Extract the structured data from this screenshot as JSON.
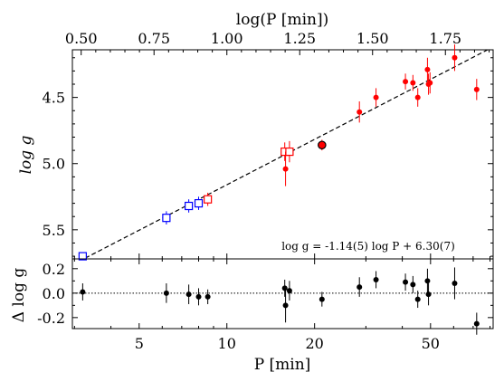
{
  "chart_data": [
    {
      "type": "scatter",
      "panel": "main",
      "top_axis_label": "log(P [min])",
      "top_ticks": [
        "0.50",
        "0.75",
        "1.00",
        "1.25",
        "1.50",
        "1.75"
      ],
      "top_tick_values": [
        0.5,
        0.75,
        1.0,
        1.25,
        1.5,
        1.75
      ],
      "ylabel": "log g",
      "y_ticks": [
        "4.5",
        "5.0",
        "5.5"
      ],
      "y_tick_values": [
        4.5,
        5.0,
        5.5
      ],
      "ylim": [
        5.72,
        4.14
      ],
      "y_inverted": true,
      "fit_label": "log g = -1.14(5) log P + 6.30(7)",
      "fit": {
        "slope": -1.14,
        "intercept": 6.3,
        "style": "dashed"
      },
      "series": [
        {
          "marker": "open-square",
          "color": "#0000ff",
          "points": [
            {
              "x": 3.2,
              "y": 5.7,
              "err": 0.03
            },
            {
              "x": 6.2,
              "y": 5.41,
              "err": 0.05
            },
            {
              "x": 7.4,
              "y": 5.32,
              "err": 0.05
            },
            {
              "x": 8.0,
              "y": 5.3,
              "err": 0.05
            }
          ]
        },
        {
          "marker": "open-square",
          "color": "#ff0000",
          "points": [
            {
              "x": 8.6,
              "y": 5.27,
              "err": 0.05
            },
            {
              "x": 15.8,
              "y": 4.91,
              "err": 0.07
            },
            {
              "x": 16.4,
              "y": 4.91,
              "err": 0.08
            }
          ]
        },
        {
          "marker": "filled-circle",
          "color": "#ff0000",
          "points": [
            {
              "x": 15.9,
              "y": 5.04,
              "err": 0.13
            },
            {
              "x": 28.5,
              "y": 4.61,
              "err": 0.08
            },
            {
              "x": 32.5,
              "y": 4.5,
              "err": 0.07
            },
            {
              "x": 41.0,
              "y": 4.38,
              "err": 0.06
            },
            {
              "x": 43.5,
              "y": 4.39,
              "err": 0.06
            },
            {
              "x": 45.2,
              "y": 4.5,
              "err": 0.07
            },
            {
              "x": 48.8,
              "y": 4.29,
              "err": 0.09
            },
            {
              "x": 49.2,
              "y": 4.4,
              "err": 0.08
            },
            {
              "x": 49.8,
              "y": 4.39,
              "err": 0.08
            },
            {
              "x": 60.5,
              "y": 4.2,
              "err": 0.1
            },
            {
              "x": 72.0,
              "y": 4.44,
              "err": 0.08
            }
          ]
        },
        {
          "marker": "filled-circle-outlined",
          "color": "#ff0000",
          "edge": "#000000",
          "points": [
            {
              "x": 21.2,
              "y": 4.86,
              "err": 0.04
            }
          ]
        }
      ]
    },
    {
      "type": "scatter",
      "panel": "residual",
      "ylabel": "Δ log g",
      "y_ticks": [
        "0.2",
        "0.0",
        "-0.2"
      ],
      "y_tick_values": [
        0.2,
        0.0,
        -0.2
      ],
      "ylim": [
        -0.29,
        0.28
      ],
      "xlabel": "P [min]",
      "x_ticks": [
        "5",
        "10",
        "20",
        "50"
      ],
      "x_tick_values": [
        5,
        10,
        20,
        50
      ],
      "xlim": [
        2.95,
        82
      ],
      "x_scale": "log",
      "zero_line": "dotted",
      "color": "#000000",
      "points": [
        {
          "x": 3.2,
          "y": 0.01,
          "err": 0.07
        },
        {
          "x": 6.2,
          "y": 0.0,
          "err": 0.08
        },
        {
          "x": 7.4,
          "y": -0.01,
          "err": 0.08
        },
        {
          "x": 8.0,
          "y": -0.03,
          "err": 0.07
        },
        {
          "x": 8.6,
          "y": -0.03,
          "err": 0.06
        },
        {
          "x": 15.8,
          "y": 0.04,
          "err": 0.07
        },
        {
          "x": 15.9,
          "y": -0.1,
          "err": 0.14
        },
        {
          "x": 16.4,
          "y": 0.02,
          "err": 0.08
        },
        {
          "x": 21.2,
          "y": -0.05,
          "err": 0.06
        },
        {
          "x": 28.5,
          "y": 0.05,
          "err": 0.08
        },
        {
          "x": 32.5,
          "y": 0.11,
          "err": 0.07
        },
        {
          "x": 41.0,
          "y": 0.09,
          "err": 0.07
        },
        {
          "x": 43.5,
          "y": 0.07,
          "err": 0.07
        },
        {
          "x": 45.2,
          "y": -0.05,
          "err": 0.07
        },
        {
          "x": 48.8,
          "y": 0.1,
          "err": 0.1
        },
        {
          "x": 49.2,
          "y": -0.01,
          "err": 0.09
        },
        {
          "x": 60.5,
          "y": 0.08,
          "err": 0.13
        },
        {
          "x": 72.0,
          "y": -0.25,
          "err": 0.09
        }
      ]
    }
  ]
}
